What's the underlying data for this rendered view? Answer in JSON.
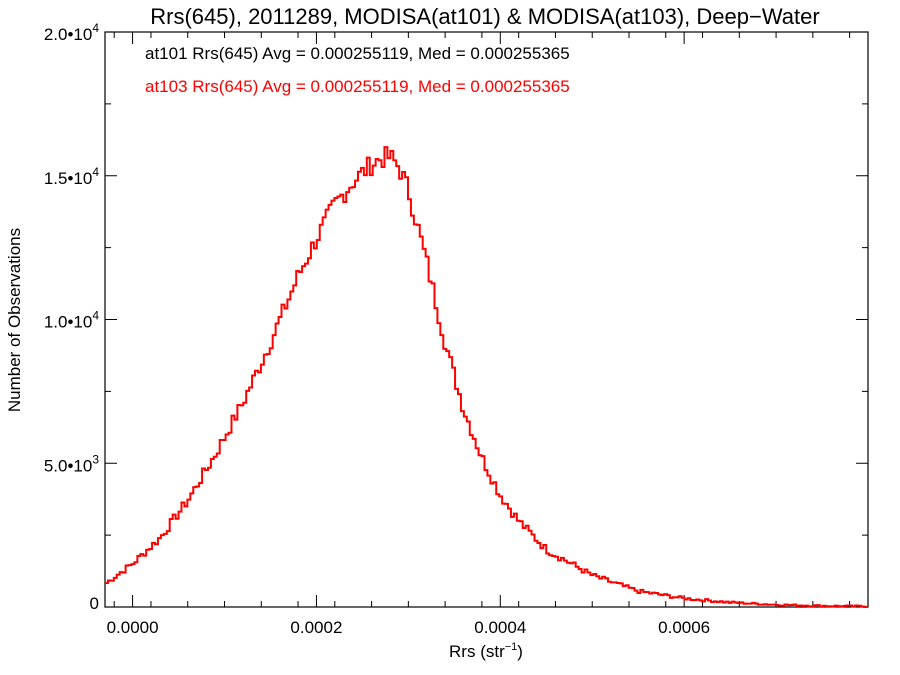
{
  "chart_data": {
    "type": "line",
    "title": "Rrs(645), 2011289, MODISA(at101) & MODISA(at103), Deep−Water",
    "xlabel": "Rrs (str",
    "xlabel_sup": "−1",
    "xlabel_end": ")",
    "ylabel": "Number of Observations",
    "xlim": [
      -3e-05,
      0.0008
    ],
    "ylim": [
      0,
      20000
    ],
    "x_ticks": [
      0.0,
      0.0002,
      0.0004,
      0.0006
    ],
    "x_tick_labels": [
      "0.0000",
      "0.0002",
      "0.0004",
      "0.0006"
    ],
    "y_ticks": [
      0,
      5000,
      10000,
      15000,
      20000
    ],
    "y_tick_labels": [
      {
        "base": "0",
        "exp": ""
      },
      {
        "base": "5.0•10",
        "exp": "3"
      },
      {
        "base": "1.0•10",
        "exp": "4"
      },
      {
        "base": "1.5•10",
        "exp": "4"
      },
      {
        "base": "2.0•10",
        "exp": "4"
      }
    ],
    "annotations": [
      {
        "text": "at101 Rrs(645) Avg = 0.000255119, Med = 0.000255365",
        "color": "#000000"
      },
      {
        "text": "at103 Rrs(645) Avg = 0.000255119, Med = 0.000255365",
        "color": "#ff0000"
      }
    ],
    "grid": false,
    "series": [
      {
        "color": "#ff0000",
        "x": [
          -3e-05,
          0.0,
          3e-05,
          6e-05,
          9e-05,
          0.00012,
          0.00015,
          0.00018,
          0.0002,
          0.00022,
          0.00024,
          0.00026,
          0.00027,
          0.00028,
          0.00029,
          0.0003,
          0.00032,
          0.00034,
          0.00036,
          0.00038,
          0.0004,
          0.00042,
          0.00045,
          0.0005,
          0.00055,
          0.0006,
          0.00065,
          0.0007,
          0.00075,
          0.0008
        ],
        "y": [
          800,
          1500,
          2400,
          3700,
          5300,
          7100,
          9200,
          11500,
          12800,
          14000,
          14800,
          15400,
          15600,
          15650,
          15300,
          14500,
          12000,
          9200,
          6900,
          5200,
          3900,
          3000,
          2000,
          1100,
          550,
          300,
          160,
          80,
          40,
          20
        ]
      }
    ]
  }
}
